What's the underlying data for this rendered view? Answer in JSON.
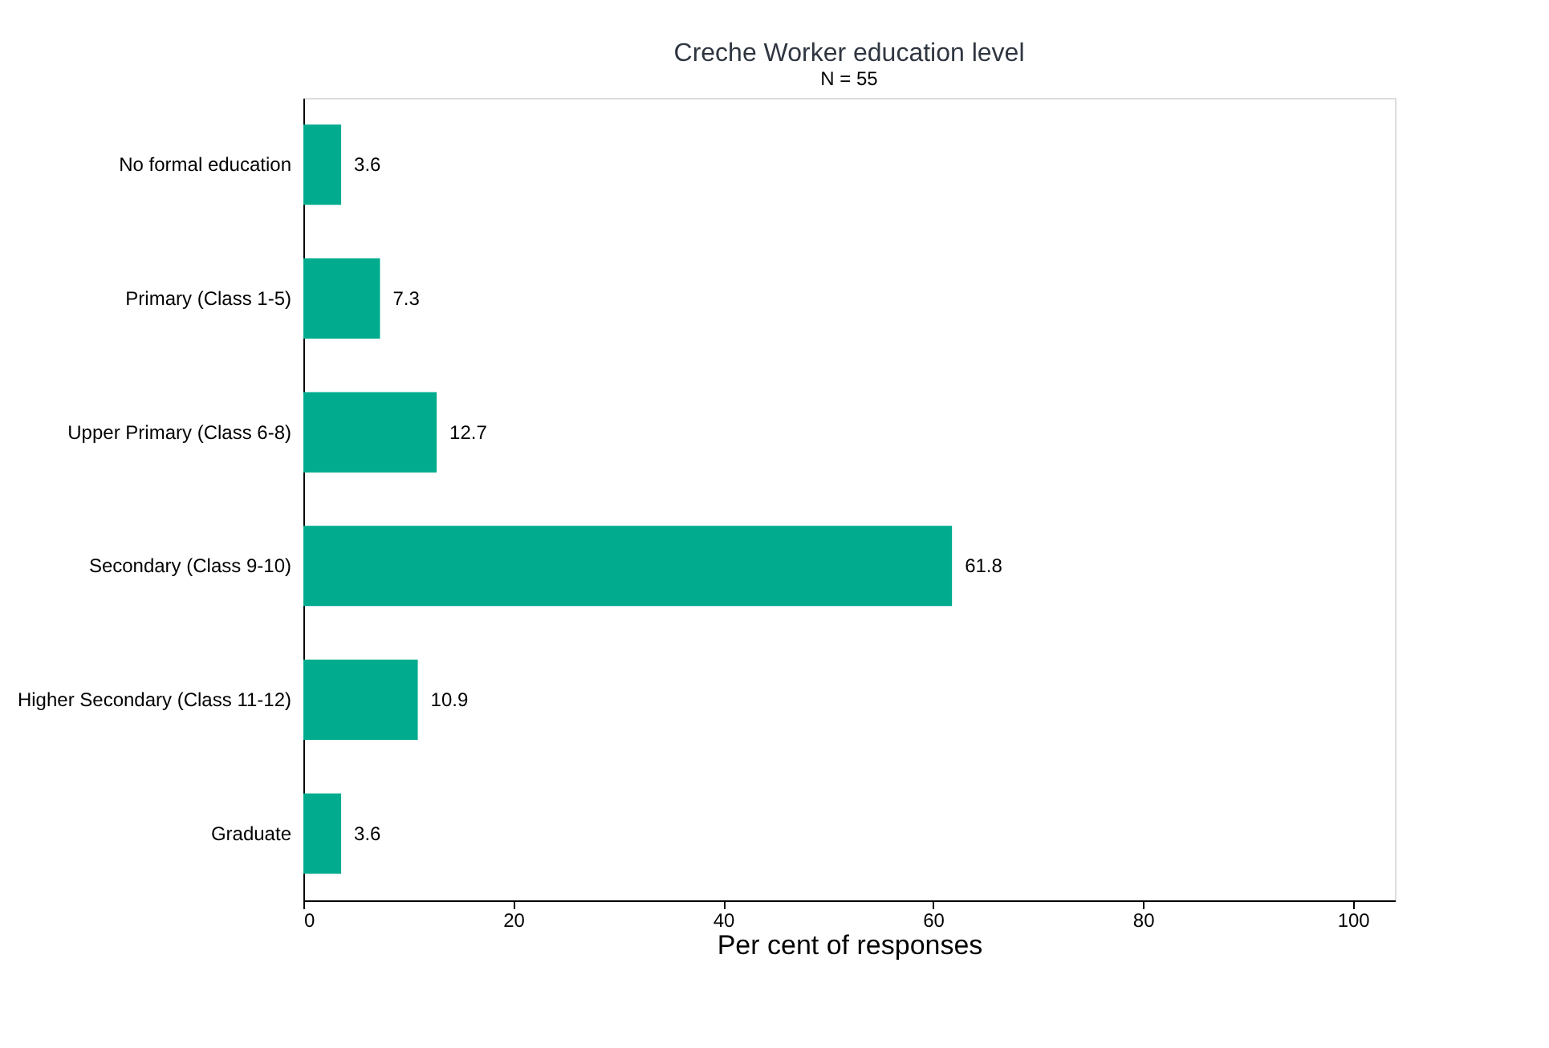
{
  "chart_data": {
    "type": "bar",
    "orientation": "horizontal",
    "title": "Creche Worker education level",
    "subtitle": "N = 55",
    "xlabel": "Per cent of responses",
    "categories": [
      "No formal education",
      "Primary (Class 1-5)",
      "Upper Primary (Class 6-8)",
      "Secondary (Class 9-10)",
      "Higher Secondary (Class 11-12)",
      "Graduate"
    ],
    "values": [
      3.6,
      7.3,
      12.7,
      61.8,
      10.9,
      3.6
    ],
    "color": "#00ab8e",
    "xlim": [
      0,
      104
    ],
    "xticks": [
      0,
      20,
      40,
      60,
      80,
      100
    ],
    "grid": false,
    "data_labels": true
  }
}
